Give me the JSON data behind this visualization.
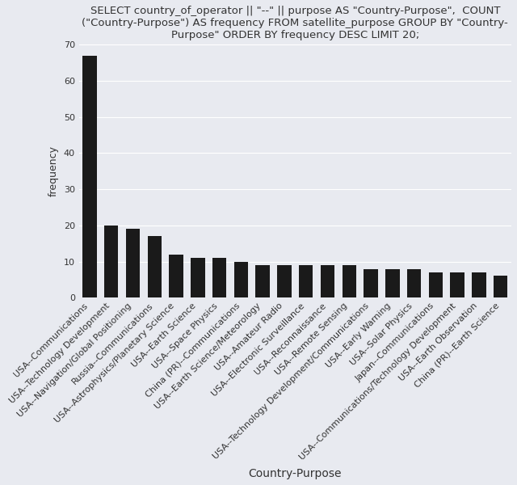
{
  "title": "SELECT country_of_operator || \"--\" || purpose AS \"Country-Purpose\",  COUNT\n(\"Country-Purpose\") AS frequency FROM satellite_purpose GROUP BY \"Country-\nPurpose\" ORDER BY frequency DESC LIMIT 20;",
  "xlabel": "Country-Purpose",
  "ylabel": "frequency",
  "categories": [
    "USA--Communications",
    "USA--Technology Development",
    "USA--Navigation/Global Positioning",
    "Russia--Communications",
    "USA--Astrophysics/Planetary Science",
    "USA--Earth Science",
    "USA--Space Physics",
    "China (PR)--Communications",
    "USA--Earth Science/Meteorology",
    "USA--Amateur Radio",
    "USA--Electronic Surveillance",
    "USA--Reconnaissance",
    "USA--Remote Sensing",
    "USA--Technology Development/Communications",
    "USA--Early Warning",
    "USA--Solar Physics",
    "Japan--Communications",
    "USA--Communications/Technology Development",
    "USA--Earth Observation",
    "China (PR)--Earth Science"
  ],
  "values": [
    67,
    20,
    19,
    17,
    12,
    11,
    11,
    10,
    9,
    9,
    9,
    9,
    9,
    8,
    8,
    8,
    7,
    7,
    7,
    6
  ],
  "bar_color": "#1a1a1a",
  "ylim": [
    0,
    70
  ],
  "yticks": [
    0,
    10,
    20,
    30,
    40,
    50,
    60,
    70
  ],
  "background_color": "#e8eaf0",
  "grid_color": "#ffffff",
  "title_fontsize": 9.5,
  "label_fontsize": 10,
  "tick_fontsize": 8,
  "ylabel_fontsize": 9
}
